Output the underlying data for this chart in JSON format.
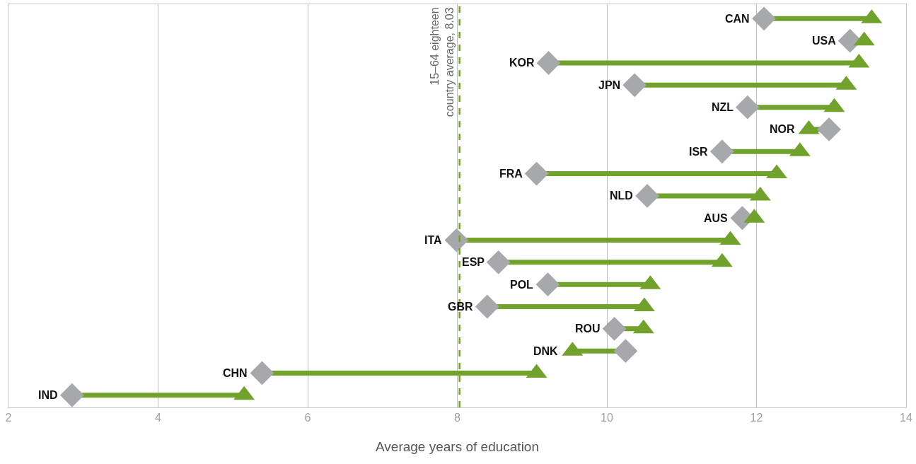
{
  "chart_data": {
    "type": "scatter",
    "orientation": "horizontal",
    "xlabel": "Average years of education",
    "categories": [
      "CAN",
      "USA",
      "KOR",
      "JPN",
      "NZL",
      "NOR",
      "ISR",
      "FRA",
      "NLD",
      "AUS",
      "ITA",
      "ESP",
      "POL",
      "GBR",
      "ROU",
      "DNK",
      "CHN",
      "IND"
    ],
    "series": [
      {
        "color": "#a7a8ab",
        "marker": "diamond",
        "values": [
          12.1,
          13.25,
          9.22,
          10.37,
          11.88,
          12.97,
          11.54,
          9.06,
          10.54,
          11.81,
          7.99,
          8.55,
          9.21,
          8.4,
          10.1,
          10.25,
          5.39,
          2.85
        ]
      },
      {
        "color": "#71a22c",
        "marker": "triangle",
        "values": [
          13.54,
          13.44,
          13.37,
          13.2,
          13.04,
          12.7,
          12.58,
          12.27,
          12.05,
          11.97,
          11.65,
          11.54,
          10.58,
          10.5,
          10.49,
          9.54,
          9.06,
          5.15
        ]
      }
    ],
    "xlim": [
      2,
      14
    ],
    "xticks": [
      2,
      4,
      6,
      8,
      10,
      12,
      14
    ],
    "grid": "x",
    "tick_labels": "x",
    "ref_lines": [
      {
        "axis": "x",
        "value": 8.03,
        "label": "15–64 eighteen\ncountry average, 8.03",
        "color": "#71a22c",
        "line_style": "dashed"
      }
    ]
  }
}
